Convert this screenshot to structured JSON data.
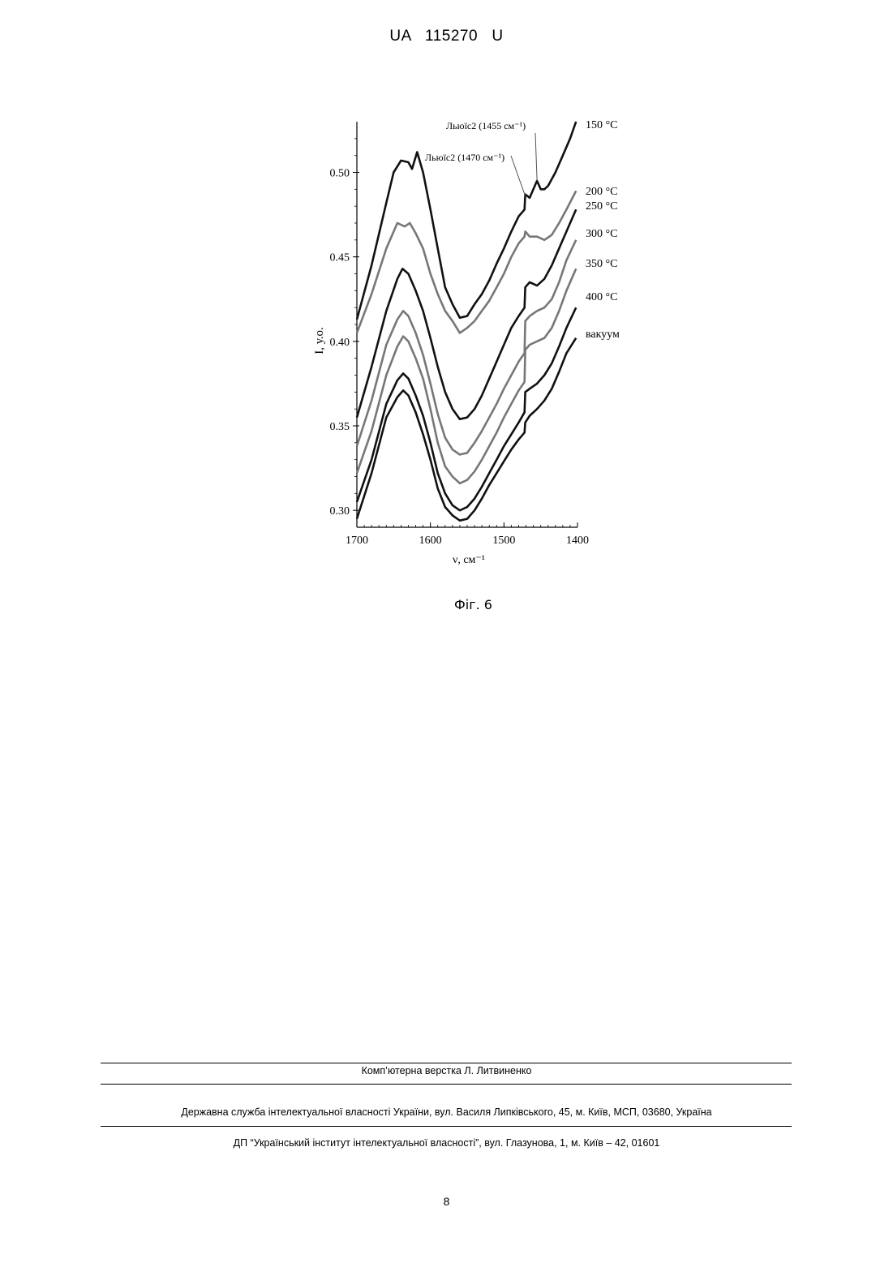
{
  "header": {
    "doc_number": "UA   115270   U"
  },
  "figure": {
    "caption": "Фіг. 6"
  },
  "footer": {
    "layout_credit": "Комп’ютерна верстка Л. Литвиненко",
    "office_address": "Державна служба інтелектуальної власності України, вул. Василя Липківського, 45, м. Київ, МСП, 03680, Україна",
    "institute_address": "ДП “Український інститут інтелектуальної власності”, вул. Глазунова, 1, м. Київ – 42, 01601",
    "page_number": "8"
  },
  "chart_data": {
    "type": "line",
    "title": "",
    "xlabel": "ν,  см⁻¹",
    "ylabel": "I, у.о.",
    "xlim": [
      1700,
      1400
    ],
    "ylim": [
      0.29,
      0.53
    ],
    "x_ticks": [
      1700,
      1600,
      1500,
      1400
    ],
    "y_ticks": [
      0.3,
      0.35,
      0.4,
      0.45,
      0.5
    ],
    "y_tick_labels": [
      "0.30",
      "0.35",
      "0.40",
      "0.45",
      "0.50"
    ],
    "grid": false,
    "legend": "labels at right end of each curve",
    "annotations": [
      {
        "text": "Льюїс2 (1470 см⁻¹)",
        "x": 1470
      },
      {
        "text": "Льюїс2 (1455 см⁻¹)",
        "x": 1455
      }
    ],
    "series": [
      {
        "name": "150 °C",
        "color": "#111111",
        "points": [
          [
            1700,
            0.413
          ],
          [
            1680,
            0.445
          ],
          [
            1660,
            0.482
          ],
          [
            1650,
            0.5
          ],
          [
            1640,
            0.507
          ],
          [
            1630,
            0.506
          ],
          [
            1625,
            0.502
          ],
          [
            1618,
            0.512
          ],
          [
            1610,
            0.5
          ],
          [
            1600,
            0.478
          ],
          [
            1590,
            0.455
          ],
          [
            1580,
            0.432
          ],
          [
            1570,
            0.422
          ],
          [
            1560,
            0.414
          ],
          [
            1550,
            0.415
          ],
          [
            1540,
            0.422
          ],
          [
            1530,
            0.428
          ],
          [
            1520,
            0.436
          ],
          [
            1510,
            0.446
          ],
          [
            1500,
            0.455
          ],
          [
            1490,
            0.465
          ],
          [
            1480,
            0.474
          ],
          [
            1472,
            0.478
          ],
          [
            1471,
            0.487
          ],
          [
            1465,
            0.485
          ],
          [
            1460,
            0.49
          ],
          [
            1455,
            0.495
          ],
          [
            1450,
            0.49
          ],
          [
            1445,
            0.49
          ],
          [
            1440,
            0.492
          ],
          [
            1430,
            0.5
          ],
          [
            1420,
            0.51
          ],
          [
            1410,
            0.52
          ],
          [
            1402,
            0.53
          ]
        ]
      },
      {
        "name": "200 °C",
        "color": "#777777",
        "points": [
          [
            1700,
            0.405
          ],
          [
            1680,
            0.428
          ],
          [
            1660,
            0.455
          ],
          [
            1645,
            0.47
          ],
          [
            1635,
            0.468
          ],
          [
            1628,
            0.47
          ],
          [
            1620,
            0.464
          ],
          [
            1610,
            0.455
          ],
          [
            1600,
            0.44
          ],
          [
            1590,
            0.428
          ],
          [
            1580,
            0.418
          ],
          [
            1570,
            0.412
          ],
          [
            1560,
            0.405
          ],
          [
            1550,
            0.408
          ],
          [
            1540,
            0.412
          ],
          [
            1530,
            0.418
          ],
          [
            1520,
            0.424
          ],
          [
            1510,
            0.432
          ],
          [
            1500,
            0.44
          ],
          [
            1490,
            0.45
          ],
          [
            1480,
            0.458
          ],
          [
            1472,
            0.462
          ],
          [
            1471,
            0.465
          ],
          [
            1465,
            0.462
          ],
          [
            1455,
            0.462
          ],
          [
            1445,
            0.46
          ],
          [
            1435,
            0.463
          ],
          [
            1425,
            0.47
          ],
          [
            1415,
            0.478
          ],
          [
            1402,
            0.489
          ]
        ]
      },
      {
        "name": "250 °C",
        "color": "#111111",
        "points": [
          [
            1700,
            0.355
          ],
          [
            1680,
            0.385
          ],
          [
            1660,
            0.418
          ],
          [
            1645,
            0.437
          ],
          [
            1638,
            0.443
          ],
          [
            1630,
            0.44
          ],
          [
            1620,
            0.43
          ],
          [
            1610,
            0.418
          ],
          [
            1600,
            0.402
          ],
          [
            1590,
            0.385
          ],
          [
            1580,
            0.37
          ],
          [
            1570,
            0.36
          ],
          [
            1560,
            0.354
          ],
          [
            1550,
            0.355
          ],
          [
            1540,
            0.36
          ],
          [
            1530,
            0.368
          ],
          [
            1520,
            0.378
          ],
          [
            1510,
            0.388
          ],
          [
            1500,
            0.398
          ],
          [
            1490,
            0.408
          ],
          [
            1480,
            0.415
          ],
          [
            1472,
            0.42
          ],
          [
            1471,
            0.432
          ],
          [
            1465,
            0.435
          ],
          [
            1455,
            0.433
          ],
          [
            1445,
            0.437
          ],
          [
            1435,
            0.445
          ],
          [
            1425,
            0.455
          ],
          [
            1415,
            0.465
          ],
          [
            1402,
            0.478
          ]
        ]
      },
      {
        "name": "300 °C",
        "color": "#777777",
        "points": [
          [
            1700,
            0.338
          ],
          [
            1680,
            0.365
          ],
          [
            1660,
            0.398
          ],
          [
            1645,
            0.413
          ],
          [
            1637,
            0.418
          ],
          [
            1630,
            0.415
          ],
          [
            1620,
            0.405
          ],
          [
            1610,
            0.392
          ],
          [
            1600,
            0.375
          ],
          [
            1590,
            0.357
          ],
          [
            1580,
            0.343
          ],
          [
            1570,
            0.336
          ],
          [
            1560,
            0.333
          ],
          [
            1550,
            0.334
          ],
          [
            1540,
            0.34
          ],
          [
            1530,
            0.347
          ],
          [
            1520,
            0.355
          ],
          [
            1510,
            0.363
          ],
          [
            1500,
            0.372
          ],
          [
            1490,
            0.38
          ],
          [
            1480,
            0.388
          ],
          [
            1472,
            0.393
          ],
          [
            1471,
            0.412
          ],
          [
            1465,
            0.415
          ],
          [
            1455,
            0.418
          ],
          [
            1445,
            0.42
          ],
          [
            1435,
            0.425
          ],
          [
            1425,
            0.435
          ],
          [
            1415,
            0.448
          ],
          [
            1402,
            0.46
          ]
        ]
      },
      {
        "name": "350 °C",
        "color": "#777777",
        "points": [
          [
            1700,
            0.322
          ],
          [
            1680,
            0.347
          ],
          [
            1660,
            0.38
          ],
          [
            1645,
            0.397
          ],
          [
            1637,
            0.403
          ],
          [
            1630,
            0.4
          ],
          [
            1620,
            0.39
          ],
          [
            1610,
            0.378
          ],
          [
            1600,
            0.36
          ],
          [
            1590,
            0.34
          ],
          [
            1580,
            0.326
          ],
          [
            1570,
            0.32
          ],
          [
            1560,
            0.316
          ],
          [
            1550,
            0.318
          ],
          [
            1540,
            0.323
          ],
          [
            1530,
            0.33
          ],
          [
            1520,
            0.338
          ],
          [
            1510,
            0.346
          ],
          [
            1500,
            0.355
          ],
          [
            1490,
            0.363
          ],
          [
            1480,
            0.371
          ],
          [
            1472,
            0.376
          ],
          [
            1471,
            0.395
          ],
          [
            1465,
            0.398
          ],
          [
            1455,
            0.4
          ],
          [
            1445,
            0.402
          ],
          [
            1435,
            0.408
          ],
          [
            1425,
            0.418
          ],
          [
            1415,
            0.43
          ],
          [
            1402,
            0.443
          ]
        ]
      },
      {
        "name": "400 °C",
        "color": "#111111",
        "points": [
          [
            1700,
            0.305
          ],
          [
            1680,
            0.33
          ],
          [
            1660,
            0.363
          ],
          [
            1645,
            0.377
          ],
          [
            1637,
            0.381
          ],
          [
            1630,
            0.378
          ],
          [
            1620,
            0.368
          ],
          [
            1610,
            0.356
          ],
          [
            1600,
            0.34
          ],
          [
            1590,
            0.322
          ],
          [
            1580,
            0.31
          ],
          [
            1570,
            0.303
          ],
          [
            1560,
            0.3
          ],
          [
            1550,
            0.302
          ],
          [
            1540,
            0.307
          ],
          [
            1530,
            0.314
          ],
          [
            1520,
            0.322
          ],
          [
            1510,
            0.33
          ],
          [
            1500,
            0.338
          ],
          [
            1490,
            0.345
          ],
          [
            1480,
            0.352
          ],
          [
            1472,
            0.358
          ],
          [
            1471,
            0.37
          ],
          [
            1465,
            0.372
          ],
          [
            1455,
            0.375
          ],
          [
            1445,
            0.38
          ],
          [
            1435,
            0.387
          ],
          [
            1425,
            0.397
          ],
          [
            1415,
            0.408
          ],
          [
            1402,
            0.42
          ]
        ]
      },
      {
        "name": "вакуум",
        "color": "#111111",
        "points": [
          [
            1700,
            0.295
          ],
          [
            1680,
            0.322
          ],
          [
            1660,
            0.355
          ],
          [
            1645,
            0.367
          ],
          [
            1637,
            0.371
          ],
          [
            1630,
            0.368
          ],
          [
            1620,
            0.358
          ],
          [
            1610,
            0.345
          ],
          [
            1600,
            0.33
          ],
          [
            1590,
            0.313
          ],
          [
            1580,
            0.302
          ],
          [
            1570,
            0.297
          ],
          [
            1560,
            0.294
          ],
          [
            1550,
            0.295
          ],
          [
            1540,
            0.3
          ],
          [
            1530,
            0.307
          ],
          [
            1520,
            0.315
          ],
          [
            1510,
            0.322
          ],
          [
            1500,
            0.329
          ],
          [
            1490,
            0.336
          ],
          [
            1480,
            0.342
          ],
          [
            1472,
            0.346
          ],
          [
            1471,
            0.352
          ],
          [
            1465,
            0.356
          ],
          [
            1455,
            0.36
          ],
          [
            1445,
            0.365
          ],
          [
            1435,
            0.372
          ],
          [
            1425,
            0.382
          ],
          [
            1415,
            0.393
          ],
          [
            1402,
            0.402
          ]
        ]
      }
    ]
  }
}
